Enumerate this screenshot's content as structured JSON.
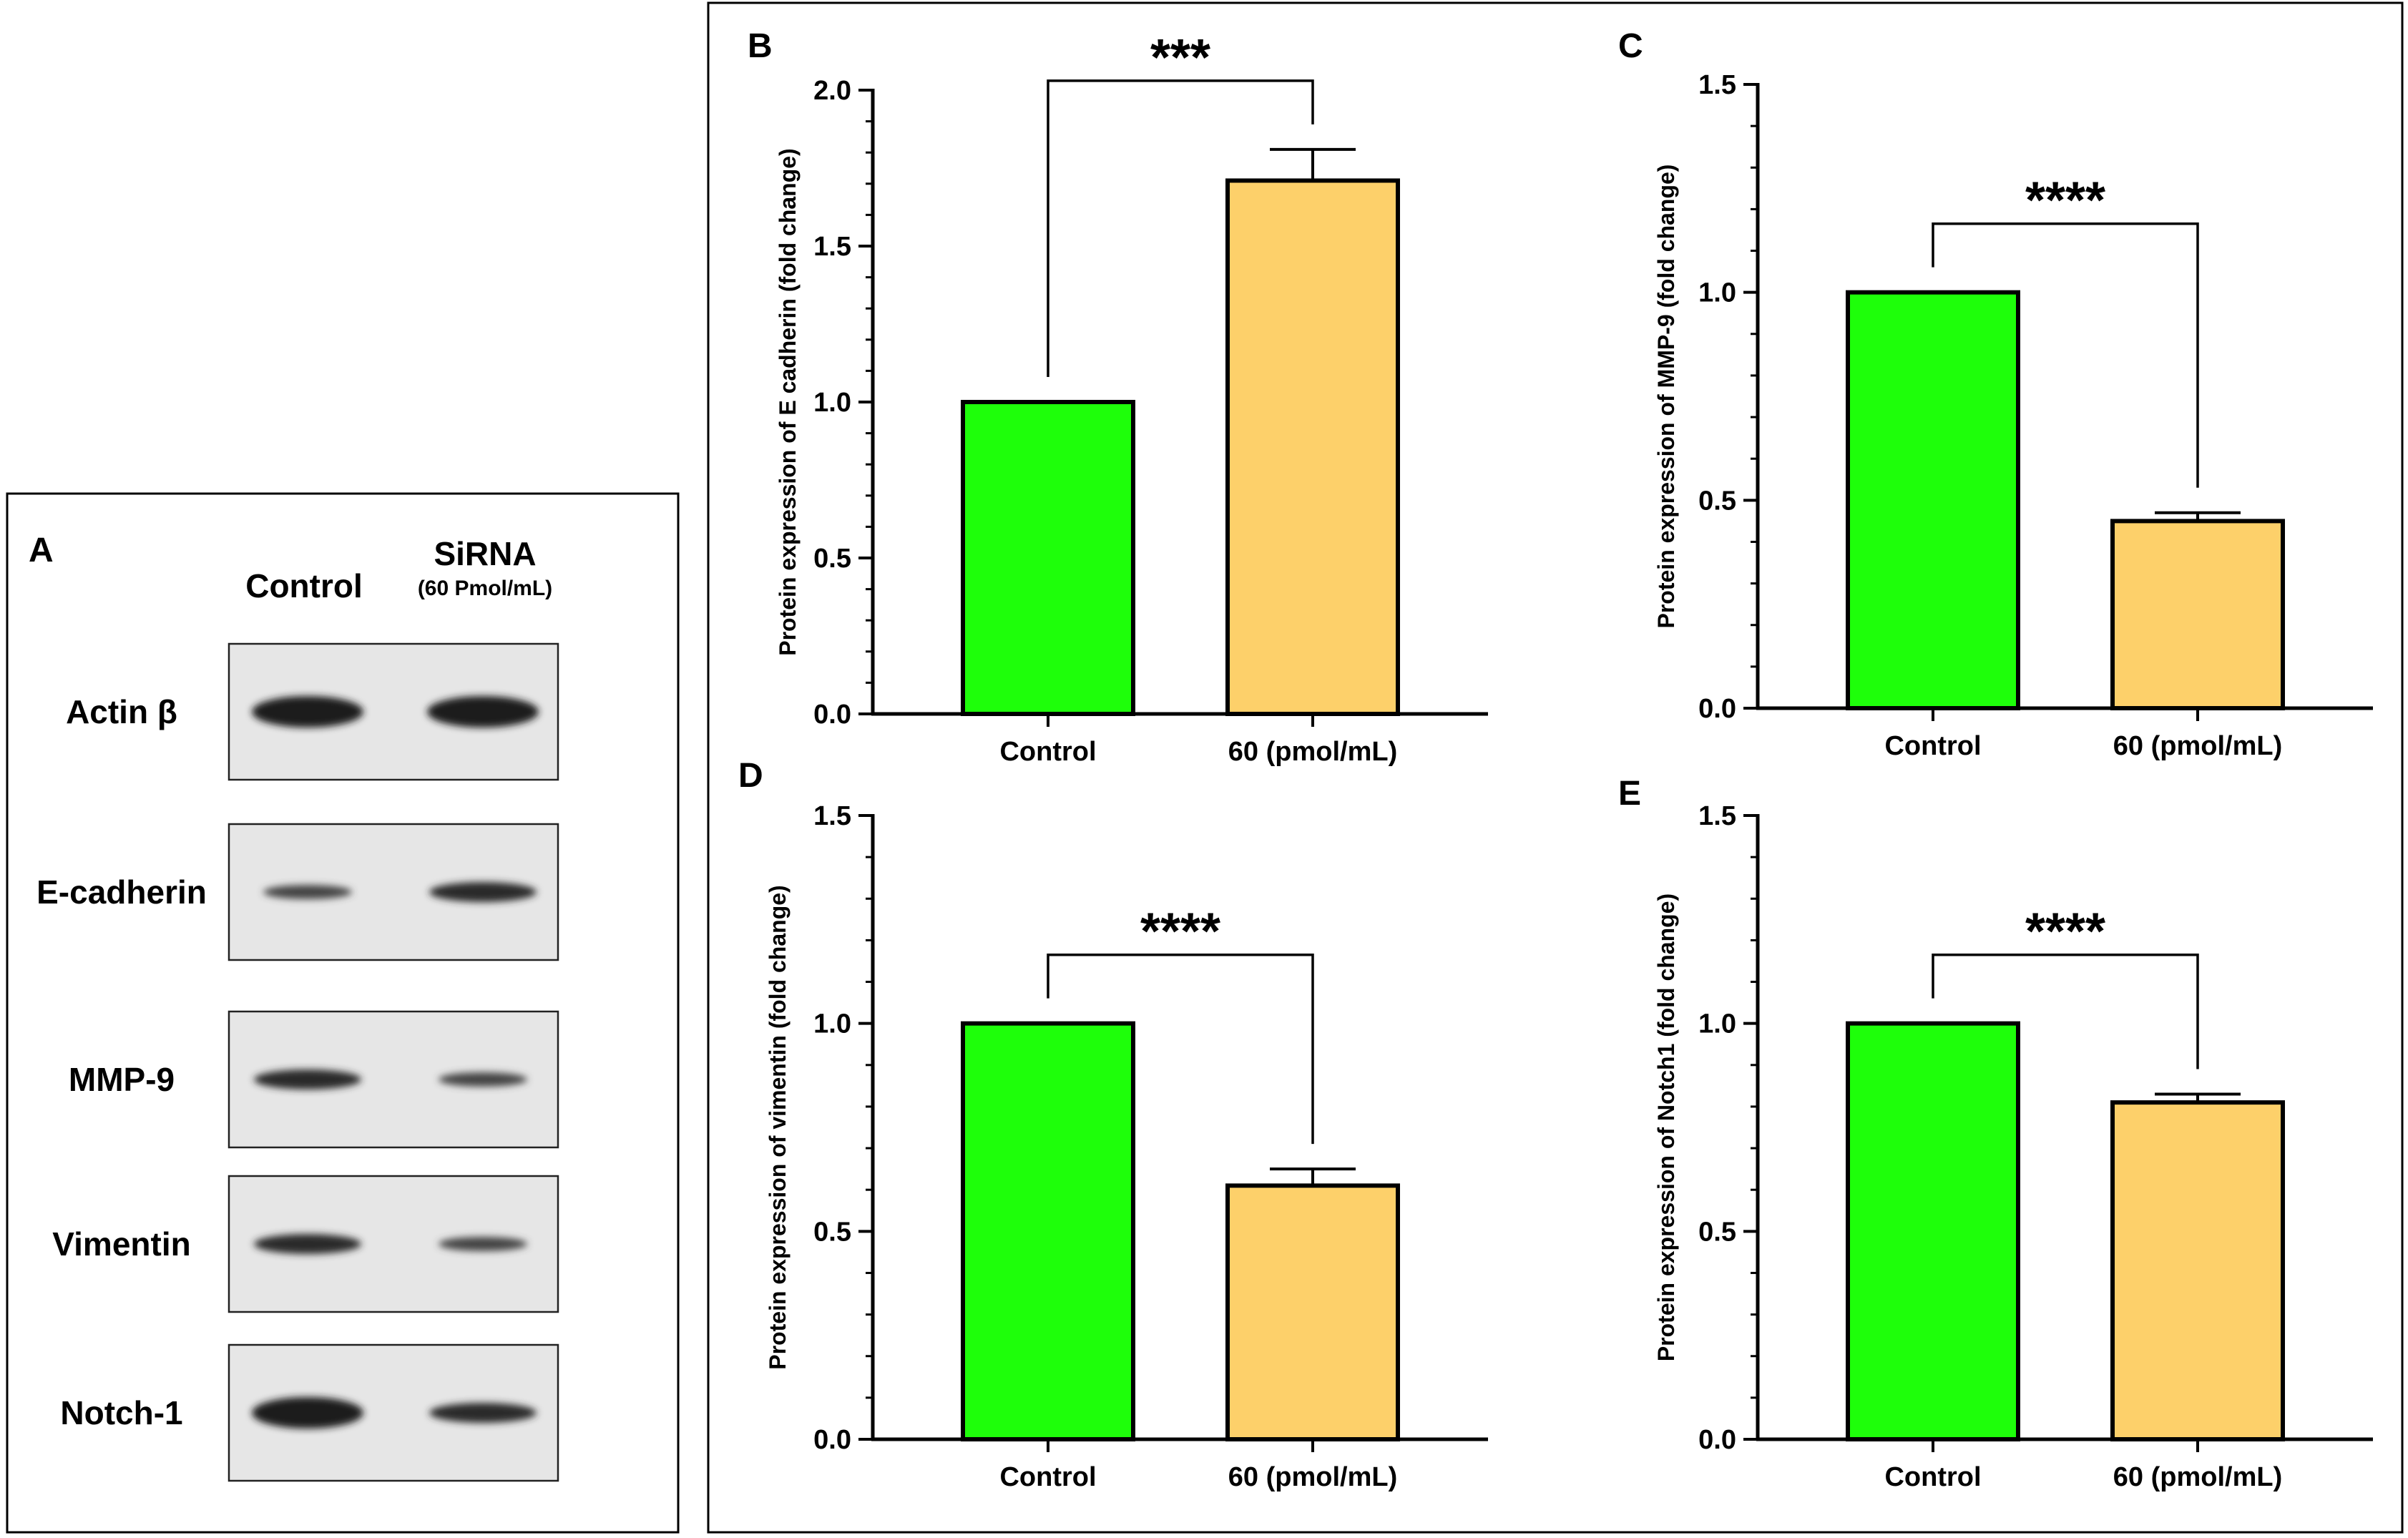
{
  "panel_a": {
    "letter": "A",
    "col_control": "Control",
    "col_sirna": "SiRNA",
    "col_sirna_sub": "(60 Pmol/mL)",
    "blots": [
      {
        "label": "Actin β",
        "control_band": "strong",
        "sirna_band": "strong"
      },
      {
        "label": "E-cadherin",
        "control_band": "weak",
        "sirna_band": "medium"
      },
      {
        "label": "MMP-9",
        "control_band": "medium",
        "sirna_band": "weak"
      },
      {
        "label": "Vimentin",
        "control_band": "medium",
        "sirna_band": "weak"
      },
      {
        "label": "Notch-1",
        "control_band": "strong",
        "sirna_band": "medium"
      }
    ]
  },
  "colors": {
    "control_bar": "#1eff0a",
    "treated_bar": "#fdd06a",
    "axis": "#000000"
  },
  "chart_data": [
    {
      "panel": "B",
      "type": "bar",
      "categories": [
        "Control",
        "60 (pmol/mL)"
      ],
      "values": [
        1.0,
        1.71
      ],
      "errors": [
        0,
        0.1
      ],
      "ylabel": "Protein expression of E cadherin  (fold change)",
      "ylim": [
        0,
        2.0
      ],
      "yticks": [
        0.0,
        0.5,
        1.0,
        1.5,
        2.0
      ],
      "tick_labels": [
        "0.0",
        "0.5",
        "1.0",
        "1.5",
        "2.0"
      ],
      "significance": "***",
      "grid": false
    },
    {
      "panel": "C",
      "type": "bar",
      "categories": [
        "Control",
        "60 (pmol/mL)"
      ],
      "values": [
        1.0,
        0.45
      ],
      "errors": [
        0,
        0.02
      ],
      "ylabel": "Protein expression of MMP-9  (fold change)",
      "ylim": [
        0,
        1.5
      ],
      "yticks": [
        0.0,
        0.5,
        1.0,
        1.5
      ],
      "tick_labels": [
        "0.0",
        "0.5",
        "1.0",
        "1.5"
      ],
      "significance": "****",
      "grid": false
    },
    {
      "panel": "D",
      "type": "bar",
      "categories": [
        "Control",
        "60 (pmol/mL)"
      ],
      "values": [
        1.0,
        0.61
      ],
      "errors": [
        0,
        0.04
      ],
      "ylabel": "Protein expression of vimentin  (fold change)",
      "ylim": [
        0,
        1.5
      ],
      "yticks": [
        0.0,
        0.5,
        1.0,
        1.5
      ],
      "tick_labels": [
        "0.0",
        "0.5",
        "1.0",
        "1.5"
      ],
      "significance": "****",
      "grid": false
    },
    {
      "panel": "E",
      "type": "bar",
      "categories": [
        "Control",
        "60 (pmol/mL)"
      ],
      "values": [
        1.0,
        0.81
      ],
      "errors": [
        0,
        0.02
      ],
      "ylabel": "Protein expression of Notch1  (fold change)",
      "ylim": [
        0,
        1.5
      ],
      "yticks": [
        0.0,
        0.5,
        1.0,
        1.5
      ],
      "tick_labels": [
        "0.0",
        "0.5",
        "1.0",
        "1.5"
      ],
      "significance": "****",
      "grid": false
    }
  ]
}
